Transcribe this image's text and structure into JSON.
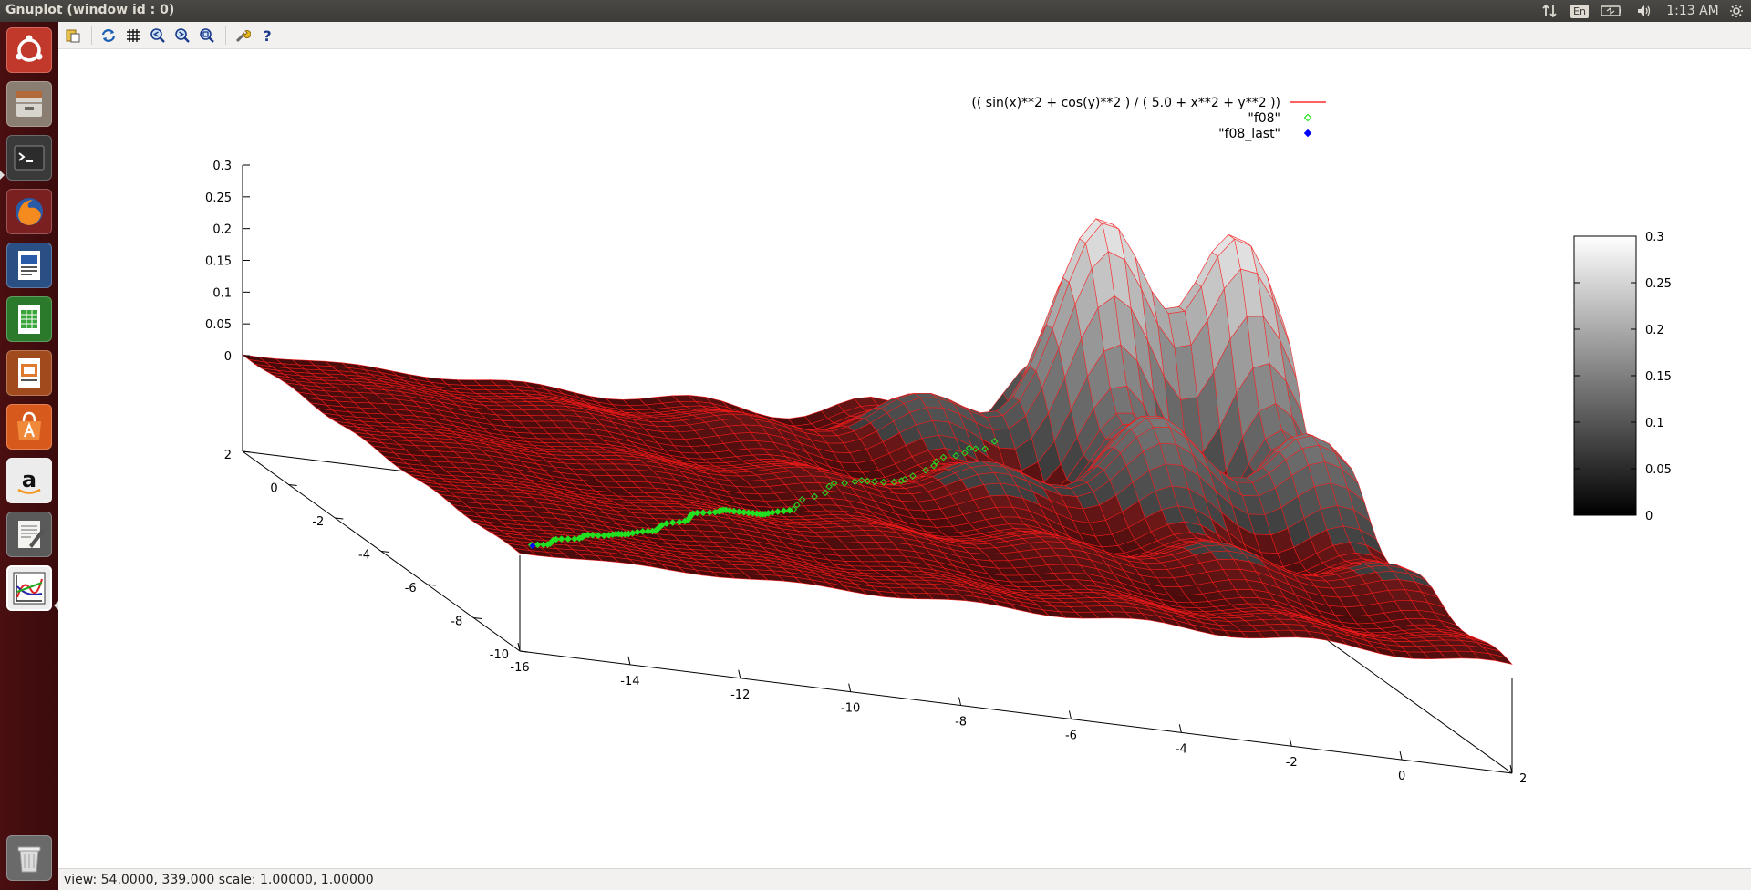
{
  "top_panel": {
    "title": "Gnuplot (window id : 0)",
    "keyboard_layout": "En",
    "clock": "1:13 AM"
  },
  "launcher": {
    "items": [
      "ubuntu-dash",
      "files",
      "terminal",
      "firefox",
      "libreoffice-writer",
      "libreoffice-calc",
      "libreoffice-impress",
      "software-center",
      "amazon",
      "text-editor",
      "gnuplot",
      "trash"
    ]
  },
  "toolbar": {
    "buttons": [
      "copy-to-clipboard",
      "replot",
      "toggle-grid",
      "zoom-previous",
      "zoom-next",
      "autoscale",
      "preferences",
      "help"
    ]
  },
  "status": {
    "text": "view: 54.0000, 339.000  scale: 1.00000, 1.00000"
  },
  "chart_data": {
    "type": "surface",
    "legend_position": "top-right",
    "series": [
      {
        "name": "(( sin(x)**2 + cos(y)**2 ) / ( 5.0 + x**2 + y**2 ))",
        "color": "#ff0000",
        "style": "lines"
      },
      {
        "name": "\"f08\"",
        "color": "#00e000",
        "style": "points"
      },
      {
        "name": "\"f08_last\"",
        "color": "#0000ff",
        "style": "points"
      }
    ],
    "z_ticks": [
      "0.3",
      "0.25",
      "0.2",
      "0.15",
      "0.1",
      "0.05",
      "0"
    ],
    "y_ticks_left": [
      "2",
      "0",
      "-2",
      "-4",
      "-6",
      "-8",
      "-10"
    ],
    "x_ticks_bottom": [
      "-16",
      "-14",
      "-12",
      "-10",
      "-8",
      "-6",
      "-4",
      "-2",
      "0",
      "2"
    ],
    "colorbar_ticks": [
      "0.3",
      "0.25",
      "0.2",
      "0.15",
      "0.1",
      "0.05",
      "0"
    ],
    "colorbar_range": [
      0,
      0.3
    ],
    "x_range": [
      -16,
      2
    ],
    "y_range": [
      -10,
      2
    ],
    "z_range": [
      0,
      0.3
    ],
    "surface_color": "#b81010",
    "mesh_color": "#ff1a1a"
  }
}
